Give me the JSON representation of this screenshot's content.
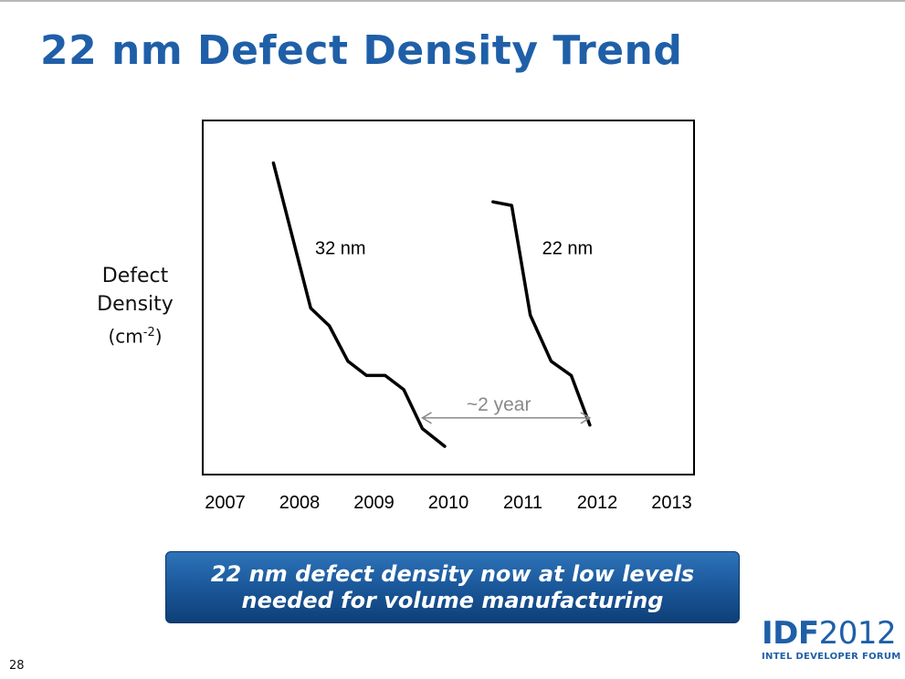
{
  "slide": {
    "title": "22 nm Defect Density Trend",
    "page_number": "28"
  },
  "y_axis_label": {
    "line1": "Defect",
    "line2": "Density",
    "unit_base": "(cm",
    "unit_exp": "-2",
    "unit_close": ")"
  },
  "chart_data": {
    "type": "line",
    "x": [
      2007,
      2008,
      2009,
      2010,
      2011,
      2012,
      2013
    ],
    "xtick_labels": [
      "2007",
      "2008",
      "2009",
      "2010",
      "2011",
      "2012",
      "2013"
    ],
    "xlim": [
      2006.7,
      2013.3
    ],
    "ylabel": "Defect Density (cm-2)",
    "yticks": "none",
    "ylim": [
      0,
      100
    ],
    "grid": false,
    "series": [
      {
        "name": "32 nm",
        "points": [
          [
            2007.65,
            88
          ],
          [
            2008.15,
            47
          ],
          [
            2008.4,
            42
          ],
          [
            2008.65,
            32
          ],
          [
            2008.9,
            28
          ],
          [
            2009.15,
            28
          ],
          [
            2009.4,
            24
          ],
          [
            2009.65,
            13
          ],
          [
            2009.95,
            8
          ]
        ]
      },
      {
        "name": "22 nm",
        "points": [
          [
            2010.6,
            77
          ],
          [
            2010.85,
            76
          ],
          [
            2011.1,
            45
          ],
          [
            2011.38,
            32
          ],
          [
            2011.65,
            28
          ],
          [
            2011.9,
            14
          ]
        ]
      }
    ],
    "annotations": [
      {
        "text": "~2 year",
        "from_x": 2009.65,
        "to_x": 2011.9,
        "y": 16,
        "style": "double-arrow"
      }
    ]
  },
  "banner": {
    "line1": "22 nm defect density now at low levels",
    "line2": "needed for volume manufacturing"
  },
  "logo": {
    "mark_bold": "IDF",
    "mark_year": "2012",
    "subtitle": "INTEL DEVELOPER FORUM"
  },
  "colors": {
    "title": "#1f5fa8",
    "banner_top": "#2e73b8",
    "banner_bottom": "#0e3f78",
    "series_line": "#000000",
    "annotation": "#8a8a8a"
  }
}
